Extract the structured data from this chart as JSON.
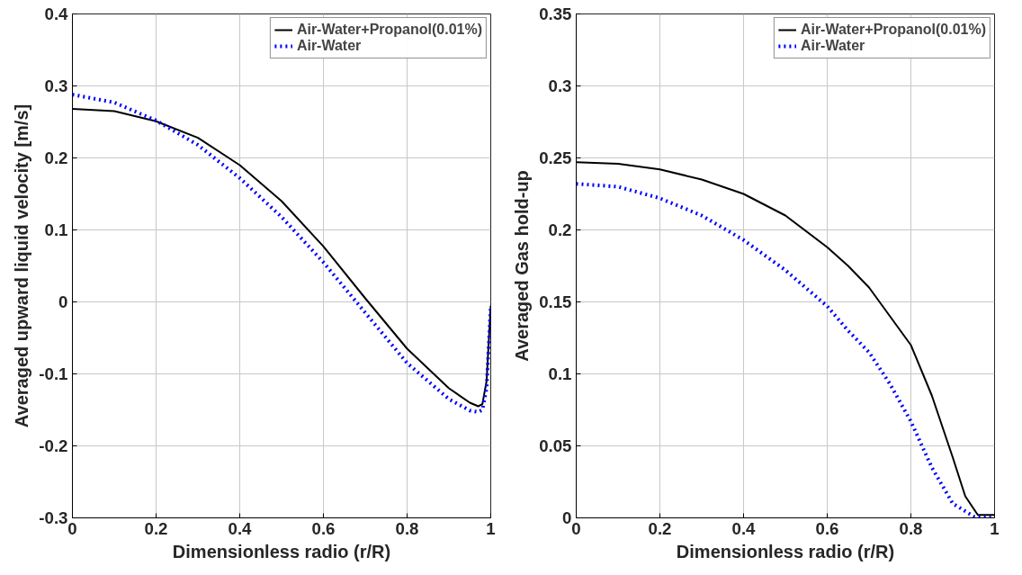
{
  "chart_data": [
    {
      "type": "line",
      "xlabel": "Dimensionless radio (r/R)",
      "ylabel": "Averaged upward liquid velocity [m/s]",
      "xlim": [
        0,
        1
      ],
      "ylim": [
        -0.3,
        0.4
      ],
      "xticks": [
        0,
        0.2,
        0.4,
        0.6,
        0.8,
        1
      ],
      "yticks": [
        -0.3,
        -0.2,
        -0.1,
        0,
        0.1,
        0.2,
        0.3,
        0.4
      ],
      "grid": true,
      "legend": "top right",
      "series": [
        {
          "name": "Air-Water+Propanol(0.01%)",
          "color": "#000000",
          "line_style": "solid",
          "x": [
            0,
            0.1,
            0.2,
            0.3,
            0.4,
            0.5,
            0.6,
            0.7,
            0.8,
            0.9,
            0.95,
            0.97,
            0.98,
            0.99,
            1.0
          ],
          "values": [
            0.268,
            0.265,
            0.251,
            0.228,
            0.19,
            0.14,
            0.077,
            0.005,
            -0.065,
            -0.12,
            -0.14,
            -0.145,
            -0.142,
            -0.11,
            -0.005
          ]
        },
        {
          "name": "Air-Water",
          "color": "#0000ff",
          "line_style": "dotted",
          "x": [
            0,
            0.1,
            0.2,
            0.3,
            0.4,
            0.5,
            0.6,
            0.7,
            0.8,
            0.9,
            0.95,
            0.97,
            0.98,
            0.99,
            1.0
          ],
          "values": [
            0.288,
            0.277,
            0.252,
            0.218,
            0.172,
            0.118,
            0.055,
            -0.015,
            -0.085,
            -0.135,
            -0.151,
            -0.153,
            -0.15,
            -0.12,
            -0.005
          ]
        }
      ]
    },
    {
      "type": "line",
      "xlabel": "Dimensionless radio (r/R)",
      "ylabel": "Averaged Gas hold-up",
      "xlim": [
        0,
        1
      ],
      "ylim": [
        0,
        0.35
      ],
      "xticks": [
        0,
        0.2,
        0.4,
        0.6,
        0.8,
        1
      ],
      "yticks": [
        0,
        0.05,
        0.1,
        0.15,
        0.2,
        0.25,
        0.3,
        0.35
      ],
      "grid": true,
      "legend": "top right",
      "series": [
        {
          "name": "Air-Water+Propanol(0.01%)",
          "color": "#000000",
          "line_style": "solid",
          "x": [
            0,
            0.1,
            0.2,
            0.3,
            0.4,
            0.5,
            0.6,
            0.65,
            0.7,
            0.75,
            0.8,
            0.85,
            0.9,
            0.93,
            0.96,
            1.0
          ],
          "values": [
            0.247,
            0.246,
            0.242,
            0.235,
            0.225,
            0.21,
            0.188,
            0.175,
            0.16,
            0.14,
            0.12,
            0.085,
            0.042,
            0.015,
            0.002,
            0.002
          ]
        },
        {
          "name": "Air-Water",
          "color": "#0000ff",
          "line_style": "dotted",
          "x": [
            0,
            0.1,
            0.2,
            0.3,
            0.4,
            0.5,
            0.6,
            0.65,
            0.7,
            0.75,
            0.8,
            0.85,
            0.9,
            0.95,
            1.0
          ],
          "values": [
            0.232,
            0.23,
            0.222,
            0.21,
            0.193,
            0.172,
            0.147,
            0.13,
            0.115,
            0.093,
            0.067,
            0.035,
            0.01,
            0.001,
            0
          ]
        }
      ]
    }
  ]
}
